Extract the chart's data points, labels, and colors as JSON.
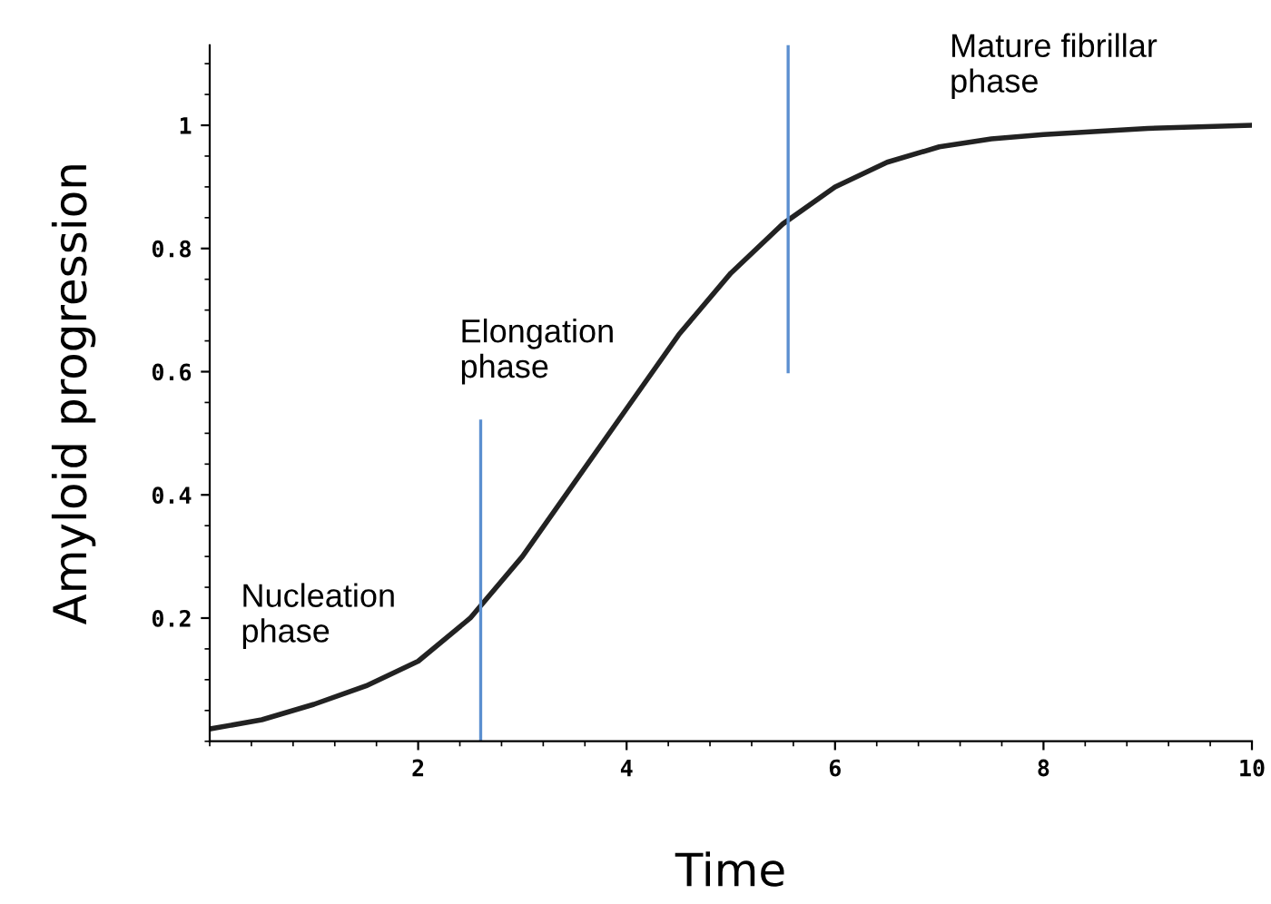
{
  "chart_data": {
    "type": "line",
    "xlabel": "Time",
    "ylabel": "Amyloid progression",
    "series": [
      {
        "color": "#222222",
        "x": [
          0,
          0.5,
          1,
          1.5,
          2,
          2.5,
          3,
          3.5,
          4,
          4.5,
          5,
          5.5,
          6,
          6.5,
          7,
          7.5,
          8,
          9,
          10
        ],
        "values": [
          0.02,
          0.035,
          0.06,
          0.09,
          0.13,
          0.2,
          0.3,
          0.42,
          0.54,
          0.66,
          0.76,
          0.84,
          0.9,
          0.94,
          0.965,
          0.978,
          0.985,
          0.995,
          1.0
        ]
      },
      {
        "color": "#5b8fd0",
        "x": [
          2.6,
          2.6
        ],
        "values": [
          0,
          0.52
        ]
      },
      {
        "color": "#5b8fd0",
        "x": [
          5.55,
          5.55
        ],
        "values": [
          0.6,
          1.13
        ]
      }
    ],
    "xlim": [
      0,
      10
    ],
    "ylim": [
      0,
      1.13
    ],
    "xticks": [
      2,
      4,
      6,
      8,
      10
    ],
    "yticks": [
      0.2,
      0.4,
      0.6,
      0.8,
      1
    ],
    "grid": false,
    "legend": false,
    "annotations": [
      "Nucleation\nphase",
      "Elongation\nphase",
      "Mature fibrillar\nphase"
    ]
  }
}
